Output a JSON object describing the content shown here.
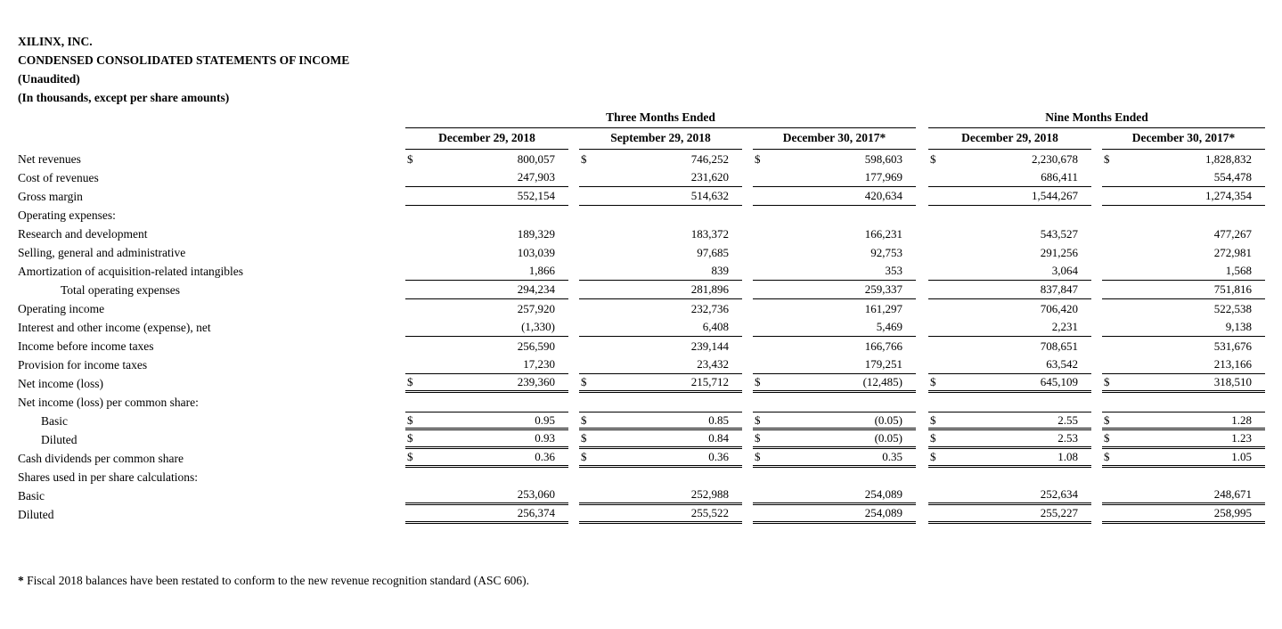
{
  "title": {
    "company": "XILINX, INC.",
    "statement": "CONDENSED CONSOLIDATED STATEMENTS OF INCOME",
    "unaudited": "(Unaudited)",
    "units": "(In thousands, except per share amounts)"
  },
  "table": {
    "currency_symbol": "$",
    "groups": [
      {
        "label": "Three Months Ended",
        "columns": 3
      },
      {
        "label": "Nine Months Ended",
        "columns": 2
      }
    ],
    "columns": [
      "December 29, 2018",
      "September 29, 2018",
      "December 30, 2017*",
      "December 29, 2018",
      "December 30, 2017*"
    ],
    "rows": [
      {
        "label": "Net revenues",
        "indent": 0,
        "dollar": true,
        "top": false,
        "bottom": "none",
        "values": [
          "800,057",
          "746,252",
          "598,603",
          "2,230,678",
          "1,828,832"
        ]
      },
      {
        "label": "Cost of revenues",
        "indent": 0,
        "dollar": false,
        "top": false,
        "bottom": "single",
        "values": [
          "247,903",
          "231,620",
          "177,969",
          "686,411",
          "554,478"
        ]
      },
      {
        "label": "Gross margin",
        "indent": 0,
        "dollar": false,
        "top": false,
        "bottom": "single",
        "values": [
          "552,154",
          "514,632",
          "420,634",
          "1,544,267",
          "1,274,354"
        ]
      },
      {
        "label": "Operating expenses:",
        "section": true
      },
      {
        "label": "Research and development",
        "indent": 0,
        "dollar": false,
        "top": false,
        "bottom": "none",
        "values": [
          "189,329",
          "183,372",
          "166,231",
          "543,527",
          "477,267"
        ]
      },
      {
        "label": "Selling, general and administrative",
        "indent": 0,
        "dollar": false,
        "top": false,
        "bottom": "none",
        "values": [
          "103,039",
          "97,685",
          "92,753",
          "291,256",
          "272,981"
        ]
      },
      {
        "label": "Amortization of acquisition-related intangibles",
        "indent": 0,
        "dollar": false,
        "top": false,
        "bottom": "single",
        "values": [
          "1,866",
          "839",
          "353",
          "3,064",
          "1,568"
        ]
      },
      {
        "label": "Total operating expenses",
        "indent": 2,
        "dollar": false,
        "top": false,
        "bottom": "single",
        "values": [
          "294,234",
          "281,896",
          "259,337",
          "837,847",
          "751,816"
        ]
      },
      {
        "label": "Operating income",
        "indent": 0,
        "dollar": false,
        "top": false,
        "bottom": "none",
        "values": [
          "257,920",
          "232,736",
          "161,297",
          "706,420",
          "522,538"
        ]
      },
      {
        "label": "Interest and other income (expense), net",
        "indent": 0,
        "dollar": false,
        "top": false,
        "bottom": "single",
        "values": [
          "(1,330)",
          "6,408",
          "5,469",
          "2,231",
          "9,138"
        ]
      },
      {
        "label": "Income before income taxes",
        "indent": 0,
        "dollar": false,
        "top": false,
        "bottom": "none",
        "values": [
          "256,590",
          "239,144",
          "166,766",
          "708,651",
          "531,676"
        ]
      },
      {
        "label": "Provision for income taxes",
        "indent": 0,
        "dollar": false,
        "top": false,
        "bottom": "single",
        "values": [
          "17,230",
          "23,432",
          "179,251",
          "63,542",
          "213,166"
        ]
      },
      {
        "label": "Net income (loss)",
        "indent": 0,
        "dollar": true,
        "top": false,
        "bottom": "double",
        "values": [
          "239,360",
          "215,712",
          "(12,485)",
          "645,109",
          "318,510"
        ]
      },
      {
        "label": "Net income (loss) per common share:",
        "section": true
      },
      {
        "label": "Basic",
        "indent": 1,
        "dollar": true,
        "top": true,
        "bottom": "double",
        "values": [
          "0.95",
          "0.85",
          "(0.05)",
          "2.55",
          "1.28"
        ]
      },
      {
        "label": "Diluted",
        "indent": 1,
        "dollar": true,
        "top": false,
        "bottom": "double",
        "values": [
          "0.93",
          "0.84",
          "(0.05)",
          "2.53",
          "1.23"
        ]
      },
      {
        "label": "Cash dividends per common share",
        "indent": 0,
        "dollar": true,
        "top": false,
        "bottom": "double",
        "values": [
          "0.36",
          "0.36",
          "0.35",
          "1.08",
          "1.05"
        ]
      },
      {
        "label": "Shares used in per share calculations:",
        "section": true
      },
      {
        "label": "Basic",
        "indent": 0,
        "dollar": false,
        "top": false,
        "bottom": "double",
        "values": [
          "253,060",
          "252,988",
          "254,089",
          "252,634",
          "248,671"
        ]
      },
      {
        "label": "Diluted",
        "indent": 0,
        "dollar": false,
        "top": false,
        "bottom": "double",
        "values": [
          "256,374",
          "255,522",
          "254,089",
          "255,227",
          "258,995"
        ]
      }
    ]
  },
  "footnote": {
    "marker": "*",
    "text": " Fiscal 2018 balances have been restated to conform to the new revenue recognition standard (ASC 606)."
  }
}
